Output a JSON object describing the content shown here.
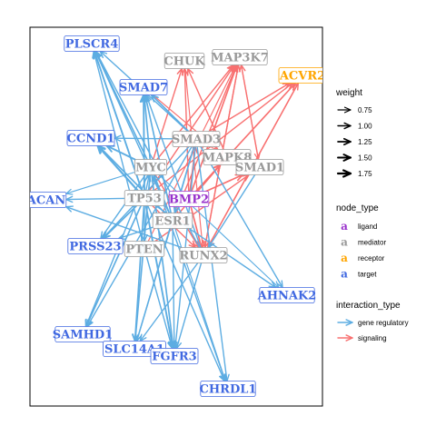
{
  "colors": {
    "ligand": "#9932CC",
    "mediator": "#999999",
    "receptor": "#FFA500",
    "target": "#4169E1",
    "gene_regulatory": "#5DADE2",
    "signaling": "#F87070"
  },
  "nodes": [
    {
      "id": "PLSCR4",
      "label": "PLSCR4",
      "type": "target"
    },
    {
      "id": "CHUK",
      "label": "CHUK",
      "type": "mediator"
    },
    {
      "id": "MAP3K7",
      "label": "MAP3K7",
      "type": "mediator"
    },
    {
      "id": "ACVR2",
      "label": "ACVR2",
      "type": "receptor"
    },
    {
      "id": "SMAD7",
      "label": "SMAD7",
      "type": "target"
    },
    {
      "id": "CCND1",
      "label": "CCND1",
      "type": "target"
    },
    {
      "id": "SMAD3",
      "label": "SMAD3",
      "type": "mediator"
    },
    {
      "id": "MAPK8",
      "label": "MAPK8",
      "type": "mediator"
    },
    {
      "id": "SMAD1",
      "label": "SMAD1",
      "type": "mediator"
    },
    {
      "id": "MYC",
      "label": "MYC",
      "type": "mediator"
    },
    {
      "id": "ACAN",
      "label": "ACAN",
      "type": "target"
    },
    {
      "id": "TP53",
      "label": "TP53",
      "type": "mediator"
    },
    {
      "id": "BMP2",
      "label": "BMP2",
      "type": "ligand"
    },
    {
      "id": "ESR1",
      "label": "ESR1",
      "type": "mediator"
    },
    {
      "id": "PRSS23",
      "label": "PRSS23",
      "type": "target"
    },
    {
      "id": "PTEN",
      "label": "PTEN",
      "type": "mediator"
    },
    {
      "id": "RUNX2",
      "label": "RUNX2",
      "type": "mediator"
    },
    {
      "id": "AHNAK2",
      "label": "AHNAK2",
      "type": "target"
    },
    {
      "id": "SAMHD1",
      "label": "SAMHD1",
      "type": "target"
    },
    {
      "id": "SLC14A1",
      "label": "SLC14A1",
      "type": "target"
    },
    {
      "id": "FGFR3",
      "label": "FGFR3",
      "type": "target"
    },
    {
      "id": "CHRDL1",
      "label": "CHRDL1",
      "type": "target"
    }
  ],
  "edges": [
    {
      "from": "BMP2",
      "to": "ACVR2",
      "type": "signaling",
      "weight": 1.25
    },
    {
      "from": "BMP2",
      "to": "MAP3K7",
      "type": "signaling",
      "weight": 1.25
    },
    {
      "from": "BMP2",
      "to": "CHUK",
      "type": "signaling",
      "weight": 1.0
    },
    {
      "from": "BMP2",
      "to": "SMAD1",
      "type": "signaling",
      "weight": 1.25
    },
    {
      "from": "BMP2",
      "to": "SMAD3",
      "type": "signaling",
      "weight": 1.0
    },
    {
      "from": "BMP2",
      "to": "MAPK8",
      "type": "signaling",
      "weight": 1.25
    },
    {
      "from": "BMP2",
      "to": "RUNX2",
      "type": "signaling",
      "weight": 1.25
    },
    {
      "from": "MYC",
      "to": "MAP3K7",
      "type": "signaling",
      "weight": 1.0
    },
    {
      "from": "MYC",
      "to": "CHUK",
      "type": "signaling",
      "weight": 1.0
    },
    {
      "from": "TP53",
      "to": "MAP3K7",
      "type": "signaling",
      "weight": 1.0
    },
    {
      "from": "TP53",
      "to": "ACVR2",
      "type": "signaling",
      "weight": 1.0
    },
    {
      "from": "ESR1",
      "to": "MAP3K7",
      "type": "signaling",
      "weight": 1.0
    },
    {
      "from": "ESR1",
      "to": "MAPK8",
      "type": "signaling",
      "weight": 1.0
    },
    {
      "from": "PTEN",
      "to": "MAP3K7",
      "type": "signaling",
      "weight": 0.75
    },
    {
      "from": "PTEN",
      "to": "SMAD1",
      "type": "signaling",
      "weight": 1.0
    },
    {
      "from": "RUNX2",
      "to": "MAP3K7",
      "type": "signaling",
      "weight": 1.0
    },
    {
      "from": "RUNX2",
      "to": "ACVR2",
      "type": "signaling",
      "weight": 1.0
    },
    {
      "from": "SMAD3",
      "to": "ACVR2",
      "type": "signaling",
      "weight": 1.0
    },
    {
      "from": "MAPK8",
      "to": "CHUK",
      "type": "signaling",
      "weight": 1.0
    },
    {
      "from": "SMAD1",
      "to": "MAP3K7",
      "type": "signaling",
      "weight": 1.0
    },
    {
      "from": "ACVR2",
      "to": "RUNX2",
      "type": "signaling",
      "weight": 1.0
    },
    {
      "from": "MAP3K7",
      "to": "RUNX2",
      "type": "signaling",
      "weight": 1.0
    },
    {
      "from": "CHUK",
      "to": "RUNX2",
      "type": "signaling",
      "weight": 0.75
    },
    {
      "from": "MAP3K7",
      "to": "SMAD1",
      "type": "signaling",
      "weight": 0.75
    },
    {
      "from": "MYC",
      "to": "RUNX2",
      "type": "signaling",
      "weight": 1.0
    },
    {
      "from": "TP53",
      "to": "RUNX2",
      "type": "signaling",
      "weight": 1.0
    },
    {
      "from": "SMAD7",
      "to": "MAPK8",
      "type": "signaling",
      "weight": 0.75
    },
    {
      "from": "TP53",
      "to": "PLSCR4",
      "type": "gene_regulatory",
      "weight": 1.5
    },
    {
      "from": "MYC",
      "to": "PLSCR4",
      "type": "gene_regulatory",
      "weight": 1.25
    },
    {
      "from": "ESR1",
      "to": "PLSCR4",
      "type": "gene_regulatory",
      "weight": 1.0
    },
    {
      "from": "PTEN",
      "to": "PLSCR4",
      "type": "gene_regulatory",
      "weight": 1.0
    },
    {
      "from": "RUNX2",
      "to": "PLSCR4",
      "type": "gene_regulatory",
      "weight": 1.0
    },
    {
      "from": "SMAD3",
      "to": "PLSCR4",
      "type": "gene_regulatory",
      "weight": 1.0
    },
    {
      "from": "TP53",
      "to": "SMAD7",
      "type": "gene_regulatory",
      "weight": 1.5
    },
    {
      "from": "MYC",
      "to": "SMAD7",
      "type": "gene_regulatory",
      "weight": 1.25
    },
    {
      "from": "ESR1",
      "to": "SMAD7",
      "type": "gene_regulatory",
      "weight": 1.25
    },
    {
      "from": "SMAD3",
      "to": "SMAD7",
      "type": "gene_regulatory",
      "weight": 1.25
    },
    {
      "from": "RUNX2",
      "to": "SMAD7",
      "type": "gene_regulatory",
      "weight": 1.0
    },
    {
      "from": "TP53",
      "to": "CCND1",
      "type": "gene_regulatory",
      "weight": 1.75
    },
    {
      "from": "MYC",
      "to": "CCND1",
      "type": "gene_regulatory",
      "weight": 1.5
    },
    {
      "from": "ESR1",
      "to": "CCND1",
      "type": "gene_regulatory",
      "weight": 1.25
    },
    {
      "from": "SMAD3",
      "to": "CCND1",
      "type": "gene_regulatory",
      "weight": 1.0
    },
    {
      "from": "TP53",
      "to": "ACAN",
      "type": "gene_regulatory",
      "weight": 1.0
    },
    {
      "from": "MYC",
      "to": "ACAN",
      "type": "gene_regulatory",
      "weight": 0.75
    },
    {
      "from": "RUNX2",
      "to": "ACAN",
      "type": "gene_regulatory",
      "weight": 1.0
    },
    {
      "from": "TP53",
      "to": "PRSS23",
      "type": "gene_regulatory",
      "weight": 1.25
    },
    {
      "from": "MYC",
      "to": "PRSS23",
      "type": "gene_regulatory",
      "weight": 1.0
    },
    {
      "from": "ESR1",
      "to": "PRSS23",
      "type": "gene_regulatory",
      "weight": 1.0
    },
    {
      "from": "SMAD3",
      "to": "PRSS23",
      "type": "gene_regulatory",
      "weight": 1.0
    },
    {
      "from": "TP53",
      "to": "SAMHD1",
      "type": "gene_regulatory",
      "weight": 1.25
    },
    {
      "from": "MYC",
      "to": "SAMHD1",
      "type": "gene_regulatory",
      "weight": 1.0
    },
    {
      "from": "SMAD3",
      "to": "SAMHD1",
      "type": "gene_regulatory",
      "weight": 1.0
    },
    {
      "from": "TP53",
      "to": "SLC14A1",
      "type": "gene_regulatory",
      "weight": 1.25
    },
    {
      "from": "MYC",
      "to": "SLC14A1",
      "type": "gene_regulatory",
      "weight": 1.25
    },
    {
      "from": "ESR1",
      "to": "SLC14A1",
      "type": "gene_regulatory",
      "weight": 1.0
    },
    {
      "from": "RUNX2",
      "to": "SLC14A1",
      "type": "gene_regulatory",
      "weight": 1.0
    },
    {
      "from": "SMAD3",
      "to": "SLC14A1",
      "type": "gene_regulatory",
      "weight": 1.0
    },
    {
      "from": "TP53",
      "to": "FGFR3",
      "type": "gene_regulatory",
      "weight": 1.5
    },
    {
      "from": "MYC",
      "to": "FGFR3",
      "type": "gene_regulatory",
      "weight": 1.25
    },
    {
      "from": "ESR1",
      "to": "FGFR3",
      "type": "gene_regulatory",
      "weight": 1.0
    },
    {
      "from": "PTEN",
      "to": "FGFR3",
      "type": "gene_regulatory",
      "weight": 1.0
    },
    {
      "from": "SMAD3",
      "to": "FGFR3",
      "type": "gene_regulatory",
      "weight": 1.0
    },
    {
      "from": "RUNX2",
      "to": "FGFR3",
      "type": "gene_regulatory",
      "weight": 1.0
    },
    {
      "from": "TP53",
      "to": "CHRDL1",
      "type": "gene_regulatory",
      "weight": 1.0
    },
    {
      "from": "MYC",
      "to": "CHRDL1",
      "type": "gene_regulatory",
      "weight": 1.0
    },
    {
      "from": "SMAD3",
      "to": "CHRDL1",
      "type": "gene_regulatory",
      "weight": 1.0
    },
    {
      "from": "ESR1",
      "to": "CHRDL1",
      "type": "gene_regulatory",
      "weight": 0.75
    },
    {
      "from": "TP53",
      "to": "AHNAK2",
      "type": "gene_regulatory",
      "weight": 1.0
    },
    {
      "from": "SMAD3",
      "to": "AHNAK2",
      "type": "gene_regulatory",
      "weight": 1.0
    },
    {
      "from": "MYC",
      "to": "AHNAK2",
      "type": "gene_regulatory",
      "weight": 0.75
    },
    {
      "from": "TP53",
      "to": "MYC",
      "type": "gene_regulatory",
      "weight": 1.0
    },
    {
      "from": "ESR1",
      "to": "MYC",
      "type": "gene_regulatory",
      "weight": 1.0
    },
    {
      "from": "TP53",
      "to": "PTEN",
      "type": "gene_regulatory",
      "weight": 1.0
    },
    {
      "from": "SMAD1",
      "to": "RUNX2",
      "type": "gene_regulatory",
      "weight": 1.0
    },
    {
      "from": "SMAD3",
      "to": "ESR1",
      "type": "gene_regulatory",
      "weight": 1.0
    }
  ],
  "legend": {
    "weight": {
      "title": "weight",
      "items": [
        {
          "label": "0.75",
          "value": 0.75
        },
        {
          "label": "1.00",
          "value": 1.0
        },
        {
          "label": "1.25",
          "value": 1.25
        },
        {
          "label": "1.50",
          "value": 1.5
        },
        {
          "label": "1.75",
          "value": 1.75
        }
      ]
    },
    "node_type": {
      "title": "node_type",
      "glyph": "a",
      "items": [
        {
          "label": "ligand",
          "type": "ligand"
        },
        {
          "label": "mediator",
          "type": "mediator"
        },
        {
          "label": "receptor",
          "type": "receptor"
        },
        {
          "label": "target",
          "type": "target"
        }
      ]
    },
    "interaction_type": {
      "title": "interaction_type",
      "items": [
        {
          "label": "gene regulatory",
          "type": "gene_regulatory"
        },
        {
          "label": "signaling",
          "type": "signaling"
        }
      ]
    }
  }
}
